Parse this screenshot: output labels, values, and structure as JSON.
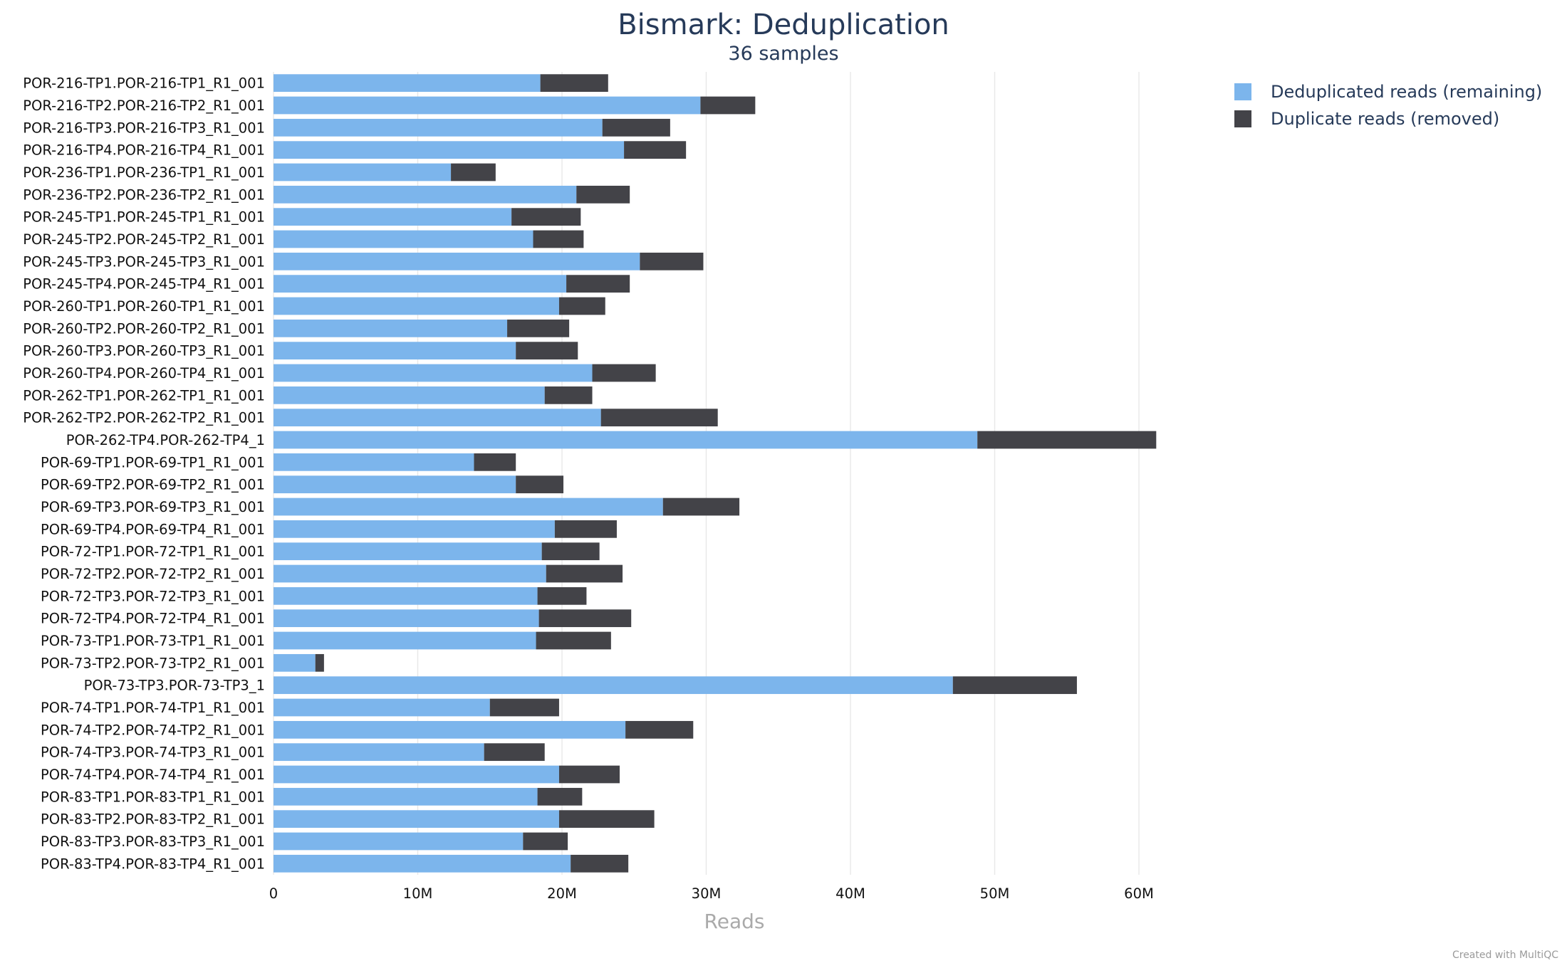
{
  "chart_data": {
    "type": "bar",
    "orientation": "horizontal",
    "stacked": true,
    "title": "Bismark: Deduplication",
    "subtitle": "36 samples",
    "xlabel": "Reads",
    "xlim": [
      0,
      64000000
    ],
    "x_ticks": [
      0,
      10000000,
      20000000,
      30000000,
      40000000,
      50000000,
      60000000
    ],
    "x_tick_labels": [
      "0",
      "10M",
      "20M",
      "30M",
      "40M",
      "50M",
      "60M"
    ],
    "grid": true,
    "legend_position": "top-right",
    "credits": "Created with MultiQC",
    "categories": [
      "POR-216-TP1.POR-216-TP1_R1_001",
      "POR-216-TP2.POR-216-TP2_R1_001",
      "POR-216-TP3.POR-216-TP3_R1_001",
      "POR-216-TP4.POR-216-TP4_R1_001",
      "POR-236-TP1.POR-236-TP1_R1_001",
      "POR-236-TP2.POR-236-TP2_R1_001",
      "POR-245-TP1.POR-245-TP1_R1_001",
      "POR-245-TP2.POR-245-TP2_R1_001",
      "POR-245-TP3.POR-245-TP3_R1_001",
      "POR-245-TP4.POR-245-TP4_R1_001",
      "POR-260-TP1.POR-260-TP1_R1_001",
      "POR-260-TP2.POR-260-TP2_R1_001",
      "POR-260-TP3.POR-260-TP3_R1_001",
      "POR-260-TP4.POR-260-TP4_R1_001",
      "POR-262-TP1.POR-262-TP1_R1_001",
      "POR-262-TP2.POR-262-TP2_R1_001",
      "POR-262-TP4.POR-262-TP4_1",
      "POR-69-TP1.POR-69-TP1_R1_001",
      "POR-69-TP2.POR-69-TP2_R1_001",
      "POR-69-TP3.POR-69-TP3_R1_001",
      "POR-69-TP4.POR-69-TP4_R1_001",
      "POR-72-TP1.POR-72-TP1_R1_001",
      "POR-72-TP2.POR-72-TP2_R1_001",
      "POR-72-TP3.POR-72-TP3_R1_001",
      "POR-72-TP4.POR-72-TP4_R1_001",
      "POR-73-TP1.POR-73-TP1_R1_001",
      "POR-73-TP2.POR-73-TP2_R1_001",
      "POR-73-TP3.POR-73-TP3_1",
      "POR-74-TP1.POR-74-TP1_R1_001",
      "POR-74-TP2.POR-74-TP2_R1_001",
      "POR-74-TP3.POR-74-TP3_R1_001",
      "POR-74-TP4.POR-74-TP4_R1_001",
      "POR-83-TP1.POR-83-TP1_R1_001",
      "POR-83-TP2.POR-83-TP2_R1_001",
      "POR-83-TP3.POR-83-TP3_R1_001",
      "POR-83-TP4.POR-83-TP4_R1_001"
    ],
    "series": [
      {
        "name": "Deduplicated reads (remaining)",
        "color": "#7cb5ec",
        "values": [
          18500000,
          29600000,
          22800000,
          24300000,
          12300000,
          21000000,
          16500000,
          18000000,
          25400000,
          20300000,
          19800000,
          16200000,
          16800000,
          22100000,
          18800000,
          22700000,
          48800000,
          13900000,
          16800000,
          27000000,
          19500000,
          18600000,
          18900000,
          18300000,
          18400000,
          18200000,
          2900000,
          47100000,
          15000000,
          24400000,
          14600000,
          19800000,
          18300000,
          19800000,
          17300000,
          20600000
        ]
      },
      {
        "name": "Duplicate reads (removed)",
        "color": "#434348",
        "values": [
          4700000,
          3800000,
          4700000,
          4300000,
          3100000,
          3700000,
          4800000,
          3500000,
          4400000,
          4400000,
          3200000,
          4300000,
          4300000,
          4400000,
          3300000,
          8100000,
          12400000,
          2900000,
          3300000,
          5300000,
          4300000,
          4000000,
          5300000,
          3400000,
          6400000,
          5200000,
          600000,
          8600000,
          4800000,
          4700000,
          4200000,
          4200000,
          3100000,
          6600000,
          3100000,
          4000000
        ]
      }
    ]
  }
}
